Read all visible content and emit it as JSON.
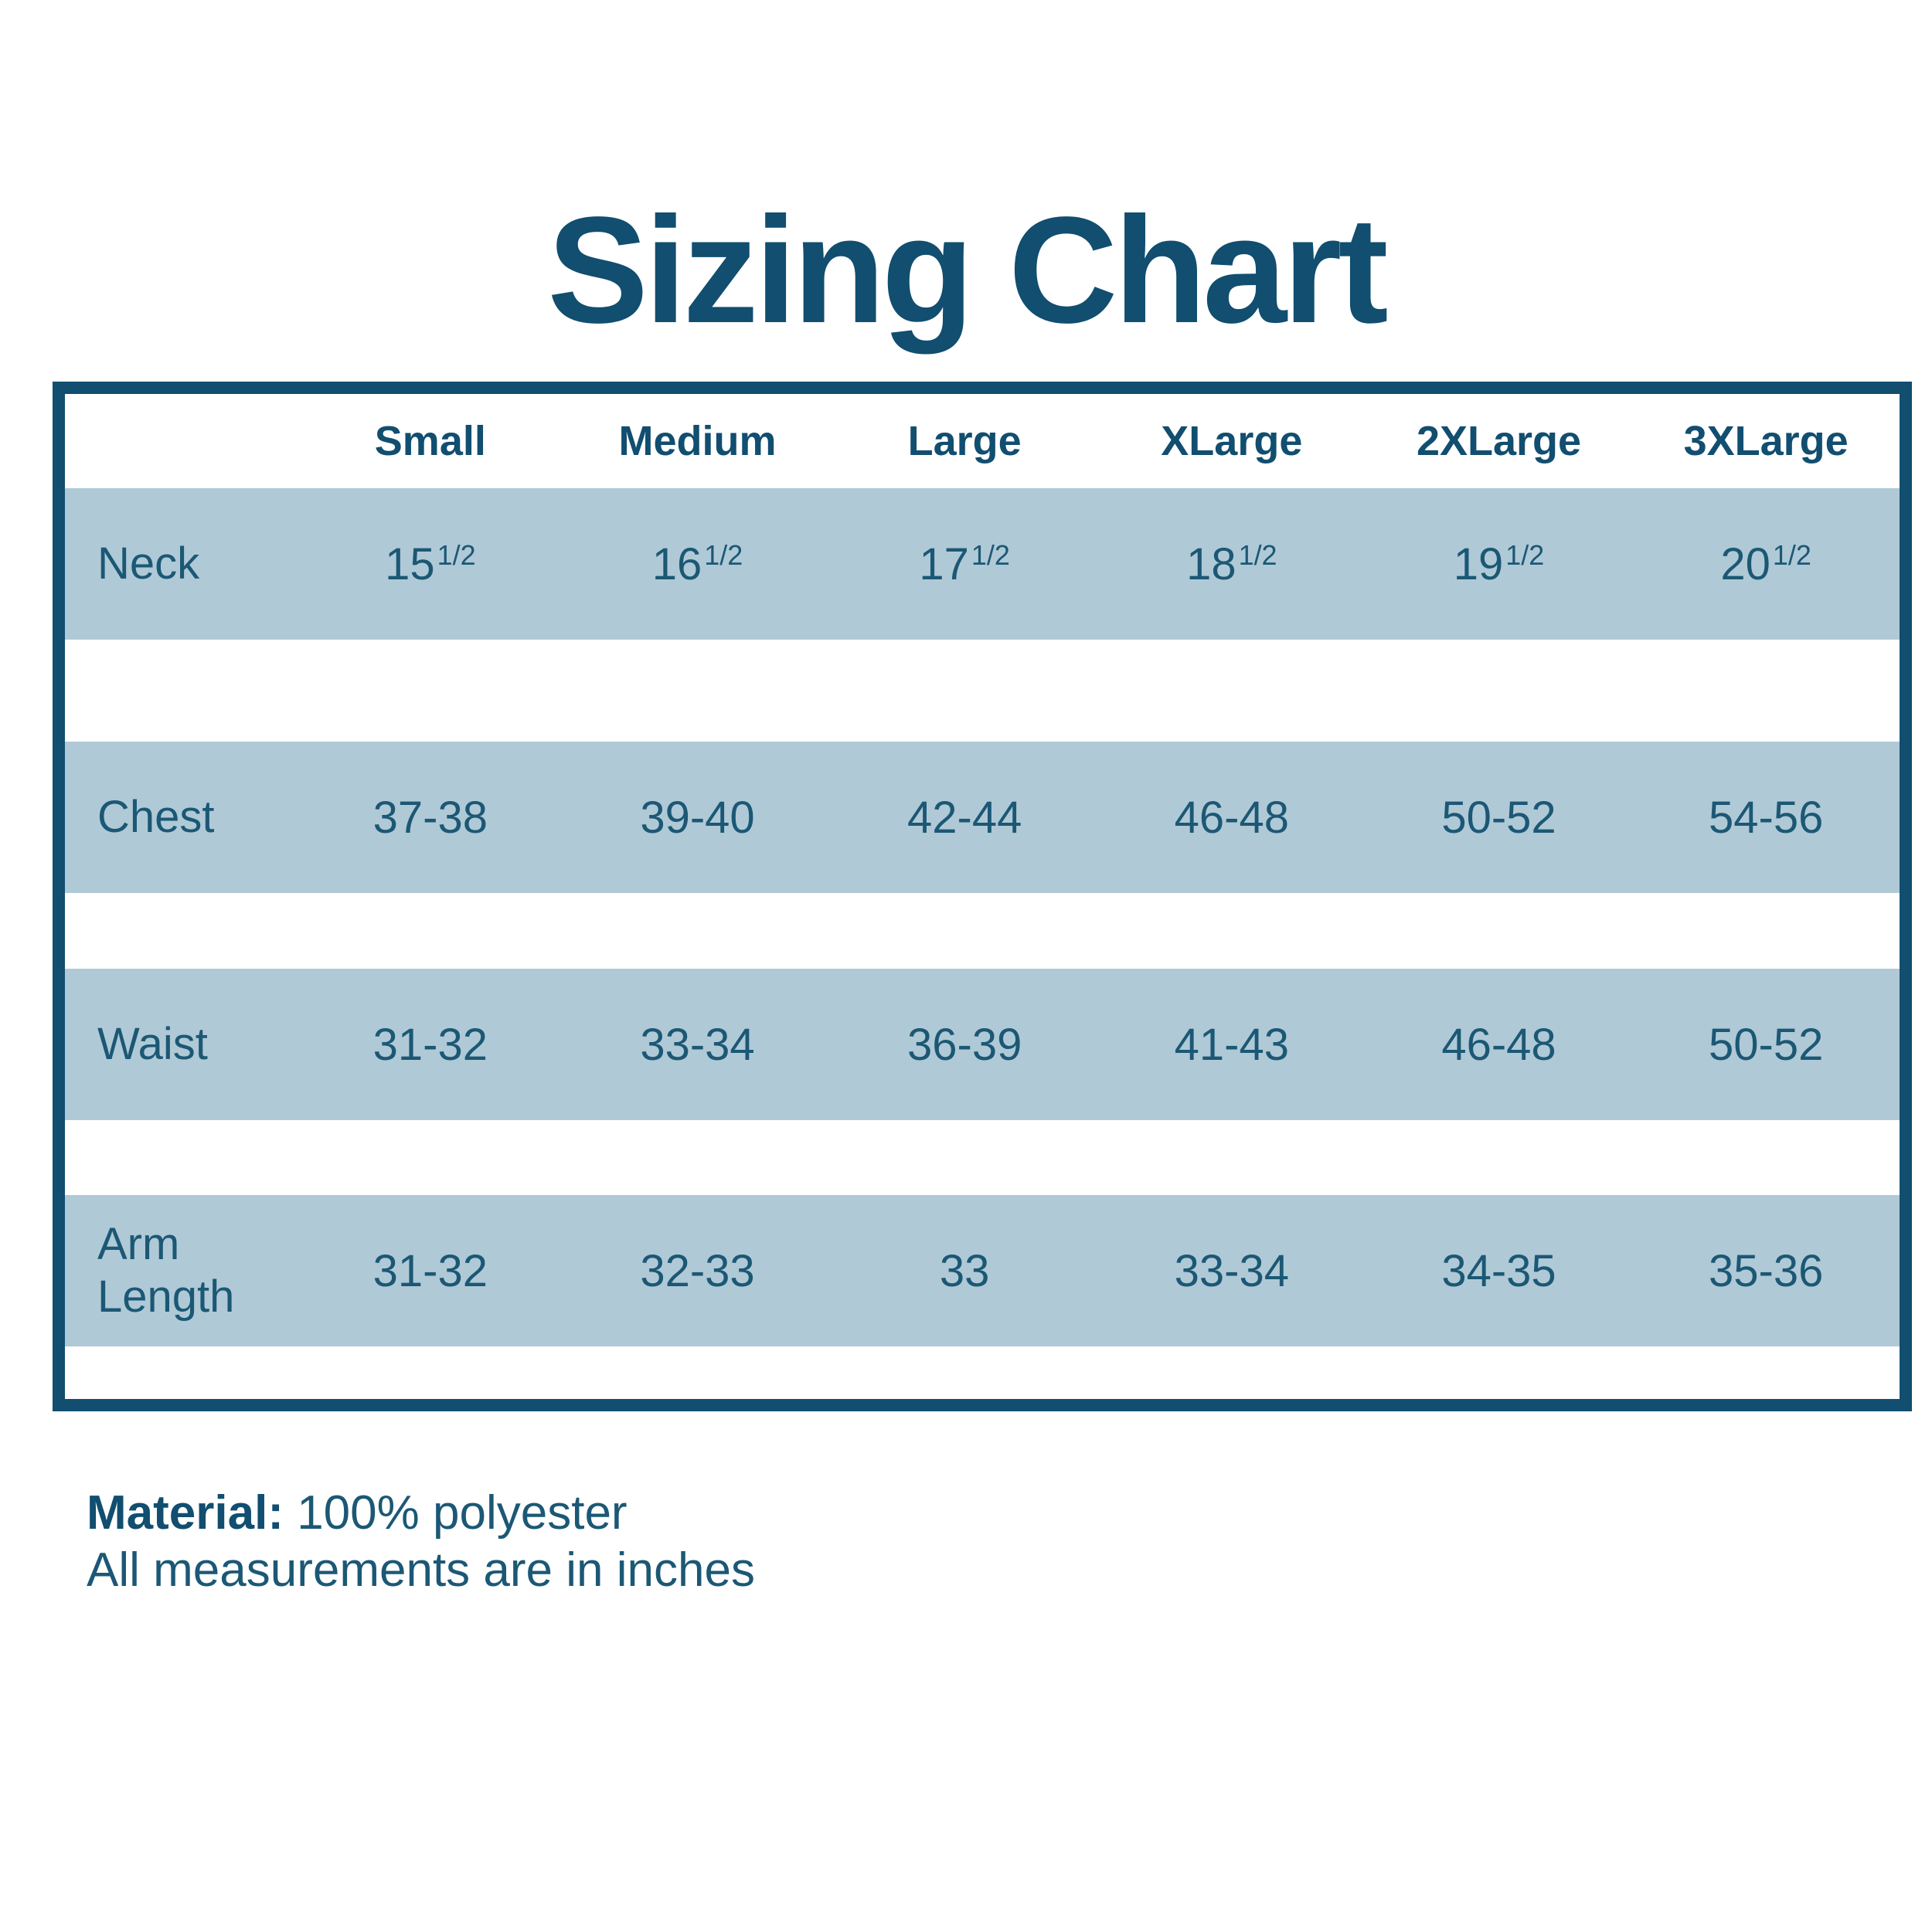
{
  "title": "Sizing Chart",
  "colors": {
    "ink": "#114e70",
    "value_ink": "#1b5875",
    "band": "#b0c9d6",
    "background": "#ffffff"
  },
  "table": {
    "size_headers": [
      "Small",
      "Medium",
      "Large",
      "XLarge",
      "2XLarge",
      "3XLarge"
    ],
    "rows": [
      {
        "label": "Neck",
        "cells": [
          {
            "base": "15",
            "sup": "1/2"
          },
          {
            "base": "16",
            "sup": "1/2"
          },
          {
            "base": "17",
            "sup": "1/2"
          },
          {
            "base": "18",
            "sup": "1/2"
          },
          {
            "base": "19",
            "sup": "1/2"
          },
          {
            "base": "20",
            "sup": "1/2"
          }
        ]
      },
      {
        "label": "Chest",
        "cells": [
          {
            "base": "37-38",
            "sup": ""
          },
          {
            "base": "39-40",
            "sup": ""
          },
          {
            "base": "42-44",
            "sup": ""
          },
          {
            "base": "46-48",
            "sup": ""
          },
          {
            "base": "50-52",
            "sup": ""
          },
          {
            "base": "54-56",
            "sup": ""
          }
        ]
      },
      {
        "label": "Waist",
        "cells": [
          {
            "base": "31-32",
            "sup": ""
          },
          {
            "base": "33-34",
            "sup": ""
          },
          {
            "base": "36-39",
            "sup": ""
          },
          {
            "base": "41-43",
            "sup": ""
          },
          {
            "base": "46-48",
            "sup": ""
          },
          {
            "base": "50-52",
            "sup": ""
          }
        ]
      },
      {
        "label": "Arm Length",
        "cells": [
          {
            "base": "31-32",
            "sup": ""
          },
          {
            "base": "32-33",
            "sup": ""
          },
          {
            "base": "33",
            "sup": ""
          },
          {
            "base": "33-34",
            "sup": ""
          },
          {
            "base": "34-35",
            "sup": ""
          },
          {
            "base": "35-36",
            "sup": ""
          }
        ]
      }
    ]
  },
  "footer": {
    "material_label": "Material:",
    "material_value": "100% polyester",
    "note": "All measurements are in inches"
  }
}
